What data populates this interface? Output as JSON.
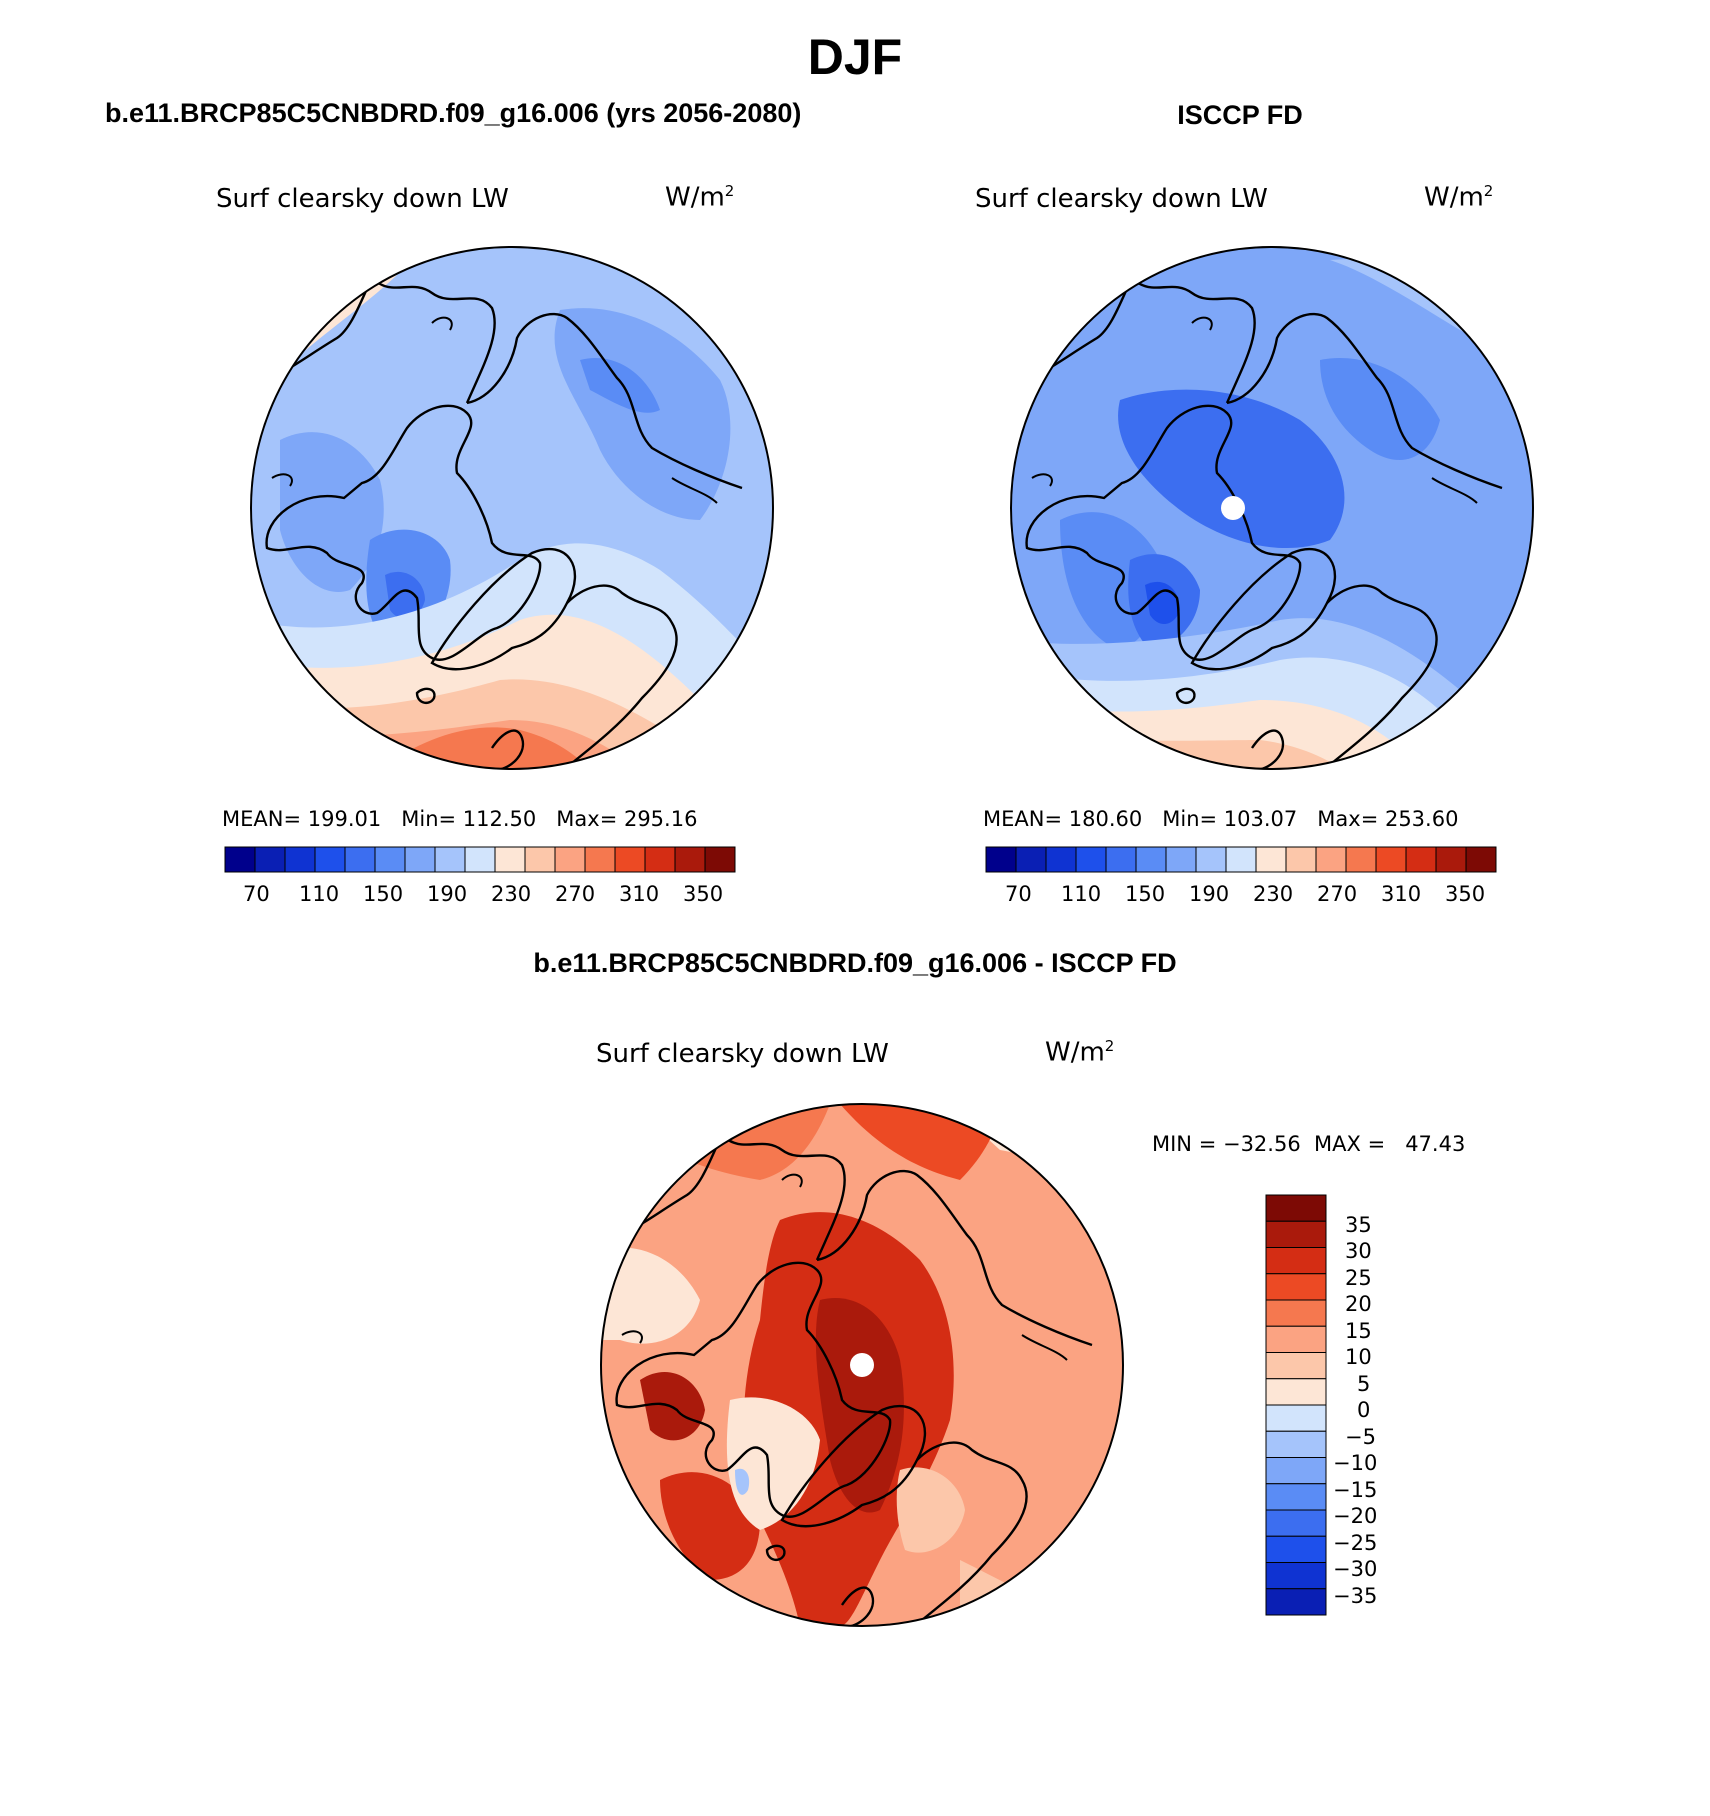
{
  "title": "DJF",
  "panels": [
    {
      "heading": "b.e11.BRCP85C5CNBDRD.f09_g16.006 (yrs 2056-2080)",
      "variable": "Surf clearsky down LW",
      "units": "W/m",
      "units_exp": "2",
      "stats": "MEAN= 199.01   Min= 112.50   Max= 295.16",
      "mean": 199.01,
      "min": 112.5,
      "max": 295.16
    },
    {
      "heading": "ISCCP FD",
      "variable": "Surf clearsky down LW",
      "units": "W/m",
      "units_exp": "2",
      "stats": "MEAN= 180.60   Min= 103.07   Max= 253.60",
      "mean": 180.6,
      "min": 103.07,
      "max": 253.6
    },
    {
      "heading": "b.e11.BRCP85C5CNBDRD.f09_g16.006 - ISCCP FD",
      "variable": "Surf clearsky down LW",
      "units": "W/m",
      "units_exp": "2",
      "stats": "MIN = −32.56  MAX =   47.43",
      "min": -32.56,
      "max": 47.43
    }
  ],
  "colorbar_main": {
    "tick_labels": [
      "70",
      "110",
      "150",
      "190",
      "230",
      "270",
      "310",
      "350"
    ],
    "colors": [
      "#00008c",
      "#0a1fb4",
      "#0f33d2",
      "#1e50eb",
      "#3c6ef0",
      "#5a8cf5",
      "#7ea7f8",
      "#a5c4fb",
      "#d2e4fc",
      "#fde6d6",
      "#fcc7aa",
      "#fba382",
      "#f5784f",
      "#ec4a24",
      "#d42d14",
      "#aa1a0c",
      "#7d0a05"
    ]
  },
  "colorbar_diff": {
    "levels": [
      "35",
      "30",
      "25",
      "20",
      "15",
      "10",
      "5",
      "0",
      "−5",
      "−10",
      "−15",
      "−20",
      "−25",
      "−30",
      "−35"
    ],
    "colors": [
      "#7d0a05",
      "#aa1a0c",
      "#d42d14",
      "#ec4a24",
      "#f5784f",
      "#fba382",
      "#fcc7aa",
      "#fde6d6",
      "#d2e4fc",
      "#a5c4fb",
      "#7ea7f8",
      "#5a8cf5",
      "#3c6ef0",
      "#1e50eb",
      "#0f33d2",
      "#0a1fb4"
    ]
  },
  "map_colors": {
    "model_base": "#a5c4fb",
    "obs_base": "#7ea7f8",
    "diff_base": "#fba382",
    "coast": "#000000"
  }
}
